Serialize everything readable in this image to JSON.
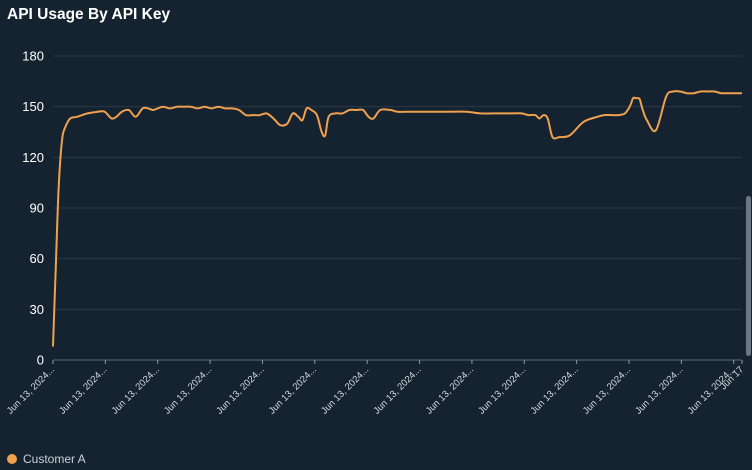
{
  "colors": {
    "background": "#15222f",
    "series": "#f0a14e",
    "grid": "#2b3a48"
  },
  "chart_data": {
    "type": "line",
    "title": "API Usage By API Key",
    "xlabel": "",
    "ylabel": "",
    "ylim": [
      0,
      180
    ],
    "yticks": [
      0,
      30,
      60,
      90,
      120,
      150,
      180
    ],
    "grid": true,
    "legend_position": "bottom-left",
    "x_tick_labels": [
      "Jun 13, 2024...",
      "Jun 13, 2024...",
      "Jun 13, 2024...",
      "Jun 13, 2024...",
      "Jun 13, 2024...",
      "Jun 13, 2024...",
      "Jun 13, 2024...",
      "Jun 13, 2024...",
      "Jun 13, 2024...",
      "Jun 13, 2024...",
      "Jun 13, 2024...",
      "Jun 13, 2024...",
      "Jun 13, 2024...",
      "Jun 13, 2024...",
      "Jun 17"
    ],
    "x_tick_fracs": [
      0,
      0.076,
      0.152,
      0.228,
      0.304,
      0.38,
      0.456,
      0.532,
      0.608,
      0.684,
      0.76,
      0.836,
      0.912,
      0.988,
      1.0
    ],
    "series": [
      {
        "name": "Customer A",
        "color": "#f0a14e",
        "x": [
          0,
          0.004,
          0.008,
          0.013,
          0.018,
          0.025,
          0.035,
          0.05,
          0.065,
          0.075,
          0.085,
          0.092,
          0.1,
          0.11,
          0.12,
          0.13,
          0.138,
          0.145,
          0.152,
          0.16,
          0.17,
          0.18,
          0.19,
          0.2,
          0.21,
          0.22,
          0.23,
          0.24,
          0.25,
          0.26,
          0.27,
          0.28,
          0.29,
          0.3,
          0.31,
          0.32,
          0.33,
          0.34,
          0.348,
          0.356,
          0.362,
          0.368,
          0.375,
          0.383,
          0.39,
          0.395,
          0.4,
          0.41,
          0.42,
          0.43,
          0.44,
          0.45,
          0.458,
          0.465,
          0.475,
          0.49,
          0.5,
          0.52,
          0.54,
          0.56,
          0.58,
          0.6,
          0.62,
          0.64,
          0.66,
          0.68,
          0.69,
          0.7,
          0.706,
          0.712,
          0.718,
          0.725,
          0.735,
          0.75,
          0.77,
          0.79,
          0.8,
          0.81,
          0.82,
          0.83,
          0.837,
          0.842,
          0.846,
          0.85,
          0.852,
          0.856,
          0.862,
          0.875,
          0.89,
          0.9,
          0.91,
          0.92,
          0.93,
          0.94,
          0.95,
          0.96,
          0.97,
          0.98,
          0.99,
          1.0
        ],
        "values": [
          8,
          55,
          100,
          130,
          138,
          143,
          144,
          146,
          147,
          147,
          143,
          144,
          147,
          148,
          144,
          149,
          149,
          148,
          149,
          150,
          149,
          150,
          150,
          150,
          149,
          150,
          149,
          150,
          149,
          149,
          148,
          145,
          145,
          145,
          146,
          143,
          139,
          140,
          146,
          144,
          142,
          149,
          148,
          145,
          135,
          133,
          144,
          146,
          146,
          148,
          148,
          148,
          144,
          143,
          148,
          148,
          147,
          147,
          147,
          147,
          147,
          147,
          146,
          146,
          146,
          146,
          145,
          145,
          143,
          145,
          143,
          132,
          132,
          133,
          141,
          144,
          145,
          145,
          145,
          146,
          150,
          155,
          155,
          155,
          154,
          148,
          142,
          136,
          156,
          159,
          159,
          158,
          158,
          159,
          159,
          159,
          158,
          158,
          158,
          158
        ]
      }
    ]
  },
  "legend": {
    "items": [
      {
        "label": "Customer A",
        "color": "#f0a14e"
      }
    ]
  }
}
